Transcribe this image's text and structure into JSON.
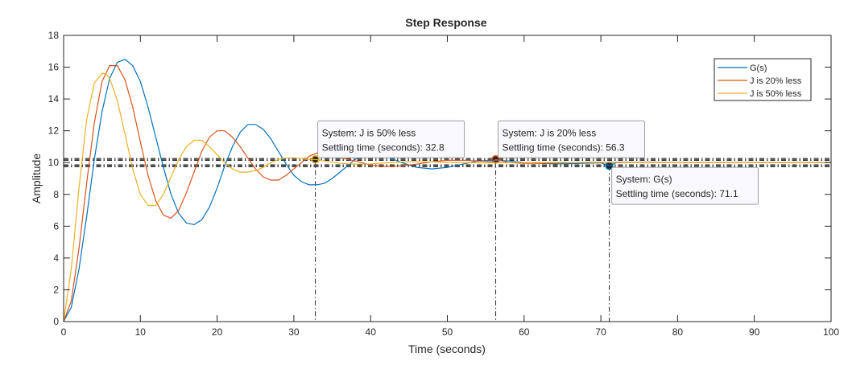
{
  "chart_data": {
    "type": "line",
    "title": "Step Response",
    "xlabel": "Time (seconds)",
    "ylabel": "Amplitude",
    "xlim": [
      0,
      100
    ],
    "ylim": [
      0,
      18
    ],
    "xticks": [
      0,
      10,
      20,
      30,
      40,
      50,
      60,
      70,
      80,
      90,
      100
    ],
    "yticks": [
      0,
      2,
      4,
      6,
      8,
      10,
      12,
      14,
      16,
      18
    ],
    "grid": false,
    "legend_position": "top-right",
    "final_value": 10,
    "settling_band": [
      9.8,
      10.2
    ],
    "series": [
      {
        "name": "G(s)",
        "color": "#0072BD",
        "x": [
          0,
          1,
          2,
          3,
          4,
          5,
          6,
          7,
          8,
          9,
          10,
          11,
          12,
          13,
          14,
          15,
          16,
          17,
          18,
          19,
          20,
          21,
          22,
          23,
          24,
          25,
          26,
          27,
          28,
          29,
          30,
          31,
          32,
          33,
          34,
          35,
          36,
          37,
          38,
          39,
          40,
          42,
          44,
          46,
          48,
          50,
          52,
          54,
          56,
          58,
          60,
          62,
          64,
          66,
          68,
          70,
          71.1,
          72,
          74,
          76,
          78,
          80,
          85,
          90,
          95,
          100
        ],
        "y": [
          0,
          0.9,
          3.3,
          6.6,
          10.2,
          13.2,
          15.3,
          16.3,
          16.5,
          16.1,
          15.1,
          13.5,
          11.6,
          9.7,
          8,
          6.8,
          6.2,
          6.1,
          6.4,
          7.2,
          8.4,
          9.8,
          11,
          11.9,
          12.4,
          12.4,
          12.1,
          11.5,
          10.7,
          9.9,
          9.2,
          8.8,
          8.6,
          8.6,
          8.7,
          9,
          9.4,
          9.8,
          10.2,
          10.5,
          10.6,
          10.4,
          10,
          9.7,
          9.6,
          9.7,
          9.9,
          10.1,
          10.15,
          10.1,
          10,
          9.95,
          9.92,
          9.93,
          9.96,
          9.98,
          9.8,
          9.99,
          10,
          10.01,
          10.01,
          10,
          10,
          10,
          10,
          10
        ]
      },
      {
        "name": "J is 20% less",
        "color": "#D95319",
        "x": [
          0,
          1,
          2,
          3,
          4,
          5,
          6,
          7,
          8,
          9,
          10,
          11,
          12,
          13,
          14,
          15,
          16,
          17,
          18,
          19,
          20,
          21,
          22,
          23,
          24,
          25,
          26,
          27,
          28,
          29,
          30,
          31,
          32,
          33,
          34,
          35,
          36,
          38,
          40,
          42,
          44,
          46,
          48,
          50,
          52,
          54,
          56,
          56.3,
          58,
          60,
          62,
          64,
          66,
          68,
          70,
          75,
          80,
          85,
          90,
          95,
          100
        ],
        "y": [
          0,
          1.3,
          4.6,
          8.7,
          12.5,
          15.1,
          16.1,
          16.1,
          15.2,
          13.5,
          11.3,
          9.2,
          7.6,
          6.7,
          6.5,
          7,
          8.1,
          9.4,
          10.7,
          11.6,
          12,
          12,
          11.6,
          11,
          10.3,
          9.6,
          9.1,
          8.9,
          8.9,
          9.2,
          9.6,
          10,
          10.4,
          10.6,
          10.6,
          10.5,
          10.3,
          10.1,
          9.85,
          9.75,
          9.8,
          9.9,
          10.05,
          10.15,
          10.15,
          10.1,
          10.05,
          10.2,
          10,
          9.95,
          9.95,
          9.97,
          10,
          10.02,
          10.02,
          10.01,
          10,
          10,
          10,
          10,
          10
        ]
      },
      {
        "name": "J is 50% less",
        "color": "#EDB120",
        "x": [
          0,
          1,
          2,
          3,
          4,
          5,
          5.5,
          6,
          7,
          8,
          9,
          10,
          11,
          12,
          13,
          14,
          15,
          16,
          17,
          18,
          19,
          20,
          21,
          22,
          23,
          24,
          25,
          26,
          27,
          28,
          29,
          30,
          31,
          32,
          32.8,
          34,
          36,
          38,
          40,
          42,
          44,
          46,
          48,
          50,
          55,
          60,
          65,
          70,
          80,
          90,
          100
        ],
        "y": [
          0,
          3.3,
          8.4,
          12.7,
          15,
          15.6,
          15.6,
          15.3,
          13.9,
          11.8,
          9.6,
          8,
          7.3,
          7.3,
          8,
          9.1,
          10.2,
          11,
          11.4,
          11.4,
          11,
          10.5,
          10,
          9.6,
          9.4,
          9.4,
          9.5,
          9.7,
          10,
          10.2,
          10.3,
          10.3,
          10.25,
          10.2,
          10.2,
          10.1,
          9.95,
          9.9,
          9.92,
          9.98,
          10.03,
          10.05,
          10.04,
          10.01,
          9.98,
          10,
          10.01,
          10,
          10,
          10,
          10
        ]
      }
    ],
    "annotations": [
      {
        "series": "J is 50% less",
        "system_line": "System: J is 50% less",
        "value_line": "Settling time (seconds): 32.8",
        "x": 32.8,
        "y": 10.2
      },
      {
        "series": "J is 20% less",
        "system_line": "System: J is 20% less",
        "value_line": "Settling time (seconds): 56.3",
        "x": 56.3,
        "y": 10.2
      },
      {
        "series": "G(s)",
        "system_line": "System: G(s)",
        "value_line": "Settling time (seconds): 71.1",
        "x": 71.1,
        "y": 9.8
      }
    ]
  }
}
